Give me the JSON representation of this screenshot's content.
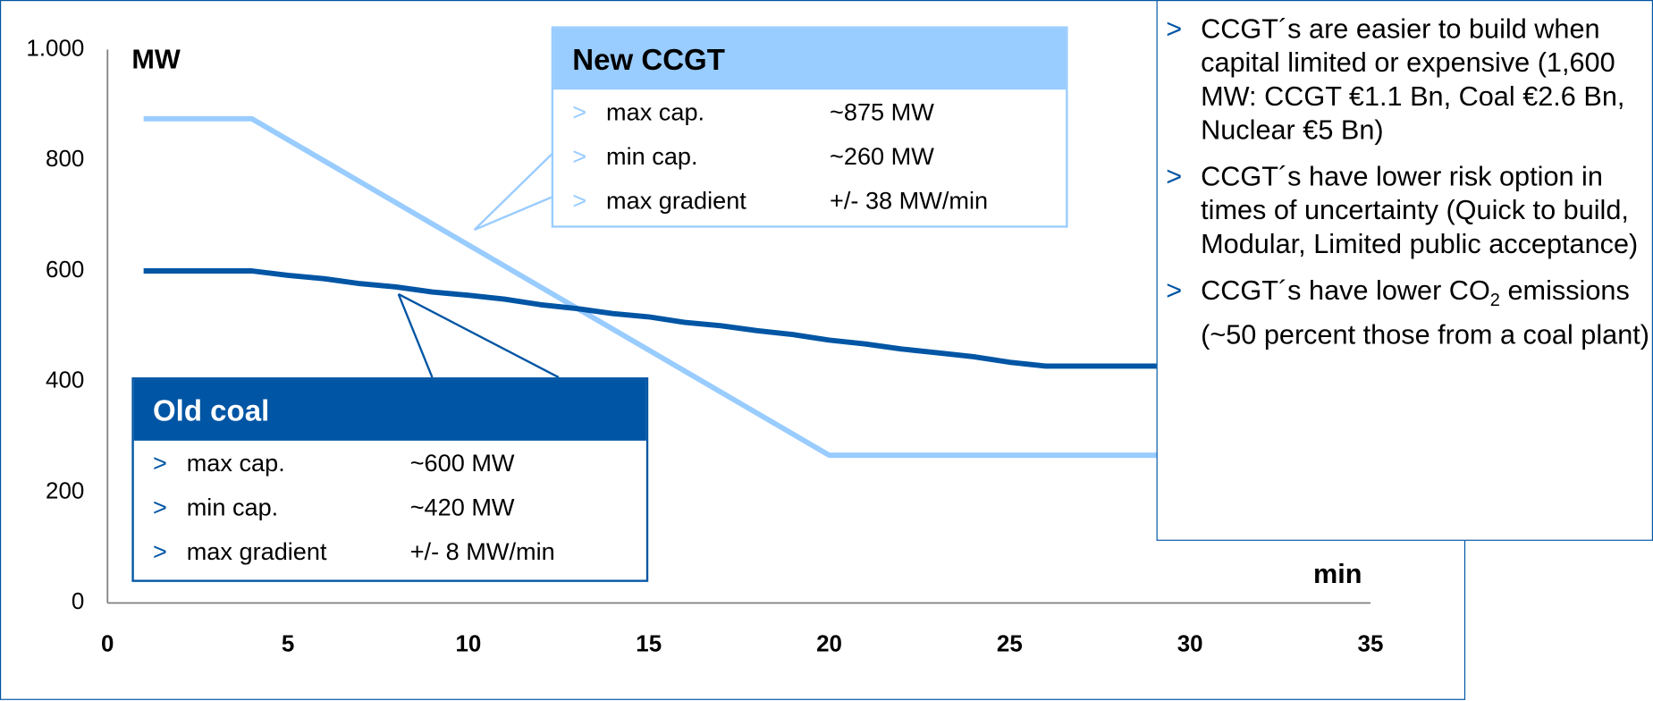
{
  "chart_data": {
    "type": "line",
    "y_label": "MW",
    "x_label": "min",
    "xlim": [
      0,
      35
    ],
    "xticks": [
      0,
      5,
      10,
      15,
      20,
      25,
      30,
      35
    ],
    "ylim": [
      0,
      1000
    ],
    "yticks": [
      0,
      200,
      400,
      600,
      800,
      {
        "value": 1000,
        "label": "1.000"
      }
    ],
    "series": [
      {
        "name": "New CCGT",
        "color": "#99ccff",
        "x": [
          1,
          4,
          20,
          30
        ],
        "values": [
          875,
          875,
          267,
          267
        ]
      },
      {
        "name": "Old coal",
        "color": "#0055a4",
        "x": [
          1,
          4,
          5,
          6,
          7,
          8,
          9,
          10,
          11,
          12,
          13,
          14,
          15,
          16,
          17,
          18,
          19,
          20,
          21,
          22,
          23,
          24,
          25,
          26,
          27,
          28,
          29,
          30
        ],
        "values": [
          600,
          600,
          592,
          586,
          577,
          571,
          562,
          556,
          549,
          539,
          532,
          523,
          517,
          507,
          501,
          492,
          485,
          475,
          468,
          459,
          452,
          445,
          435,
          428,
          428,
          428,
          428,
          428
        ]
      }
    ],
    "callouts": [
      {
        "title": "New CCGT",
        "rows": [
          [
            "max cap.",
            "~875 MW"
          ],
          [
            "min cap.",
            "~260 MW"
          ],
          [
            "max gradient",
            "+/- 38 MW/min"
          ]
        ]
      },
      {
        "title": "Old coal",
        "rows": [
          [
            "max cap.",
            "~600 MW"
          ],
          [
            "min cap.",
            "~420 MW"
          ],
          [
            "max gradient",
            "+/- 8 MW/min"
          ]
        ]
      }
    ]
  },
  "bullets": [
    {
      "text": "CCGT´s are easier to build when capital limited or expensive (1,600 MW: CCGT €1.1 Bn, Coal €2.6 Bn, Nuclear €5 Bn)"
    },
    {
      "text": "CCGT´s have lower risk option in times of uncertainty (Quick to build, Modular, Limited public acceptance)"
    },
    {
      "text": "CCGT´s have lower CO",
      "subscript": "2",
      "text_after": " emissions (~50 percent those from a coal plant)"
    }
  ]
}
